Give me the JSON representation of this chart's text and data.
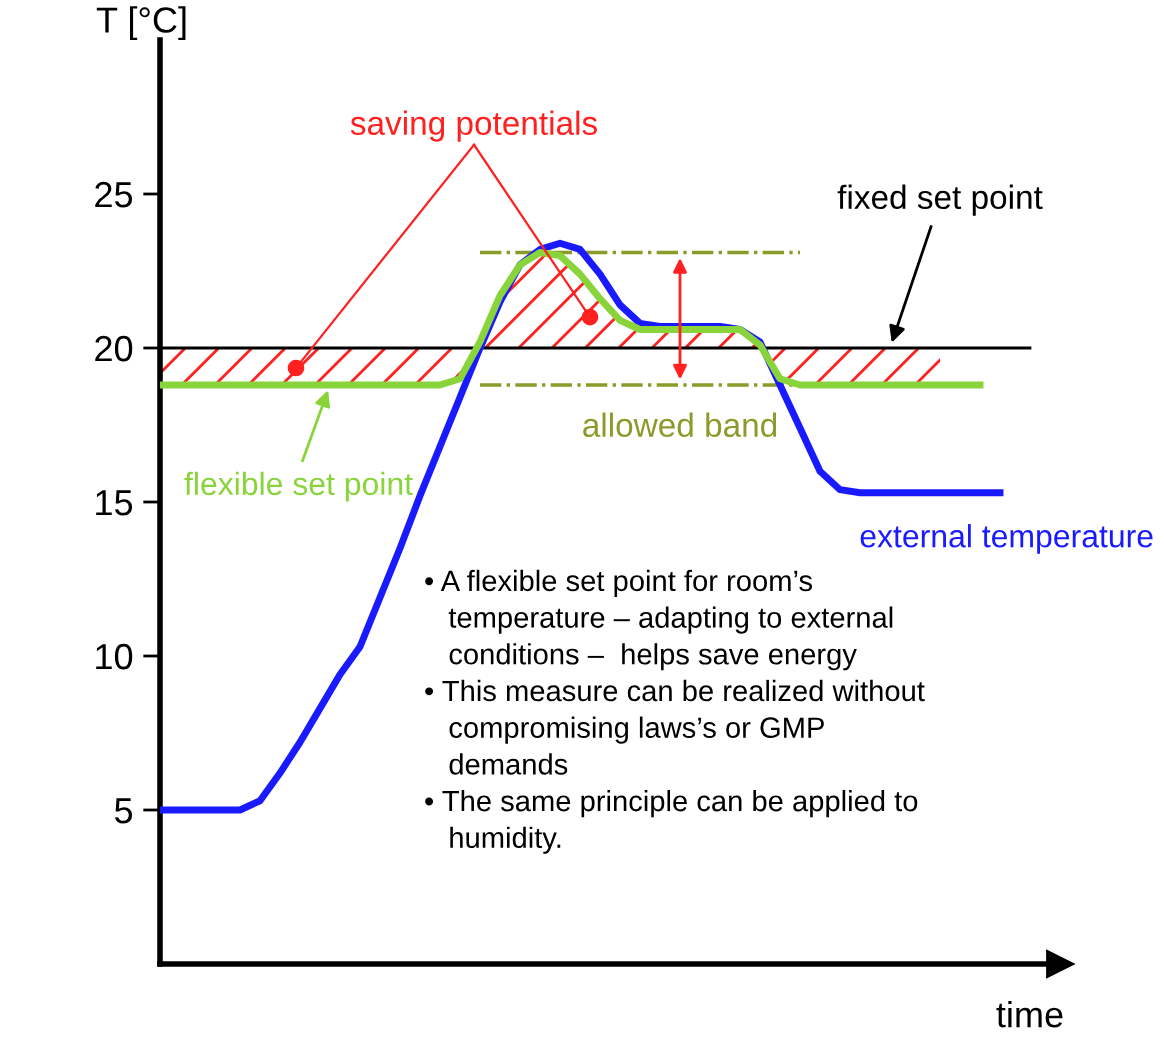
{
  "chart_data": {
    "type": "line",
    "ylabel": "T [°C]",
    "xlabel": "time",
    "categories": [
      null,
      null,
      null,
      null,
      null,
      null,
      null,
      null,
      null,
      null,
      null,
      null,
      null,
      null,
      null,
      null,
      null,
      null,
      null,
      null,
      null,
      null,
      null,
      null,
      null,
      null,
      null,
      null,
      null,
      null,
      null,
      null,
      null,
      null,
      null,
      null,
      null,
      null,
      null,
      null,
      null,
      null,
      null
    ],
    "series": [
      {
        "name": "external temperature",
        "color": "#1a1aff",
        "values": [
          5,
          5,
          5,
          5,
          5,
          5.3,
          6.2,
          7.2,
          8.3,
          9.4,
          10.3,
          11.9,
          13.5,
          15.2,
          16.8,
          18.4,
          20,
          21.5,
          22.7,
          23.2,
          23.4,
          23.2,
          22.4,
          21.4,
          20.8,
          20.7,
          20.7,
          20.7,
          20.7,
          20.6,
          20.2,
          18.8,
          17.4,
          16,
          15.4,
          15.3,
          15.3,
          15.3,
          15.3,
          15.3,
          15.3,
          15.3,
          15.3
        ]
      },
      {
        "name": "flexible set point",
        "color": "#88d43a",
        "values": [
          18.8,
          18.8,
          18.8,
          18.8,
          18.8,
          18.8,
          18.8,
          18.8,
          18.8,
          18.8,
          18.8,
          18.8,
          18.8,
          18.8,
          18.8,
          19.0,
          20.2,
          21.7,
          22.7,
          23.1,
          23.0,
          22.4,
          21.6,
          20.9,
          20.6,
          20.6,
          20.6,
          20.6,
          20.6,
          20.6,
          20.1,
          19.0,
          18.8,
          18.8,
          18.8,
          18.8,
          18.8,
          18.8,
          18.8,
          18.8,
          18.8,
          18.8,
          null
        ]
      }
    ],
    "ref_lines": [
      {
        "axis": "y",
        "value": 20,
        "label": "fixed set point",
        "color": "#000000"
      },
      {
        "axis": "y",
        "value": 23.1,
        "label": null,
        "color": "#8c9a2a",
        "line_style": "dashdot"
      },
      {
        "axis": "y",
        "value": 18.8,
        "label": "allowed band",
        "color": "#8c9a2a",
        "line_style": "dashdot"
      }
    ],
    "annotations": [
      "saving potentials",
      "• A flexible set point for room’s\n   temperature – adapting to external\n   conditions –  helps save energy\n• This measure can be realized without\n   compromising laws’s or GMP\n   demands\n• The same principle can be applied to\n   humidity."
    ],
    "ylim": [
      0,
      30
    ],
    "yticks": [
      5,
      10,
      15,
      20,
      25
    ],
    "tick_labels": "y",
    "grid": false
  }
}
